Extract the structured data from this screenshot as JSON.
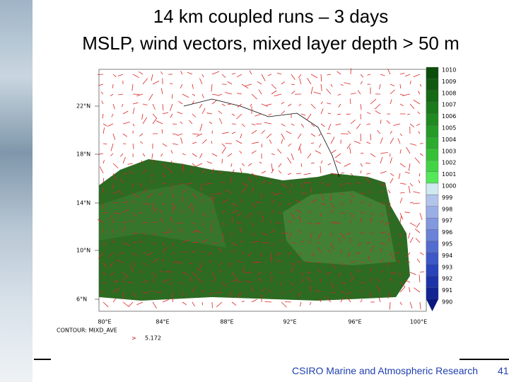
{
  "title": {
    "line1": "14 km coupled runs – 3 days",
    "line2": "MSLP, wind vectors, mixed layer depth > 50 m"
  },
  "map": {
    "lat_labels": [
      "22°N",
      "18°N",
      "14°N",
      "10°N",
      "6°N"
    ],
    "lon_labels": [
      "80°E",
      "84°E",
      "88°E",
      "92°E",
      "96°E",
      "100°E"
    ],
    "colorbar_labels": [
      "1010",
      "1009",
      "1008",
      "1007",
      "1006",
      "1005",
      "1004",
      "1003",
      "1002",
      "1001",
      "1000",
      "999",
      "998",
      "997",
      "996",
      "995",
      "994",
      "993",
      "992",
      "991",
      "990"
    ],
    "contour_note": "CONTOUR: MIXD_AVE",
    "vector_note": "5.172"
  },
  "footer": {
    "org": "CSIRO Marine and Atmospheric Research",
    "page": "41"
  }
}
